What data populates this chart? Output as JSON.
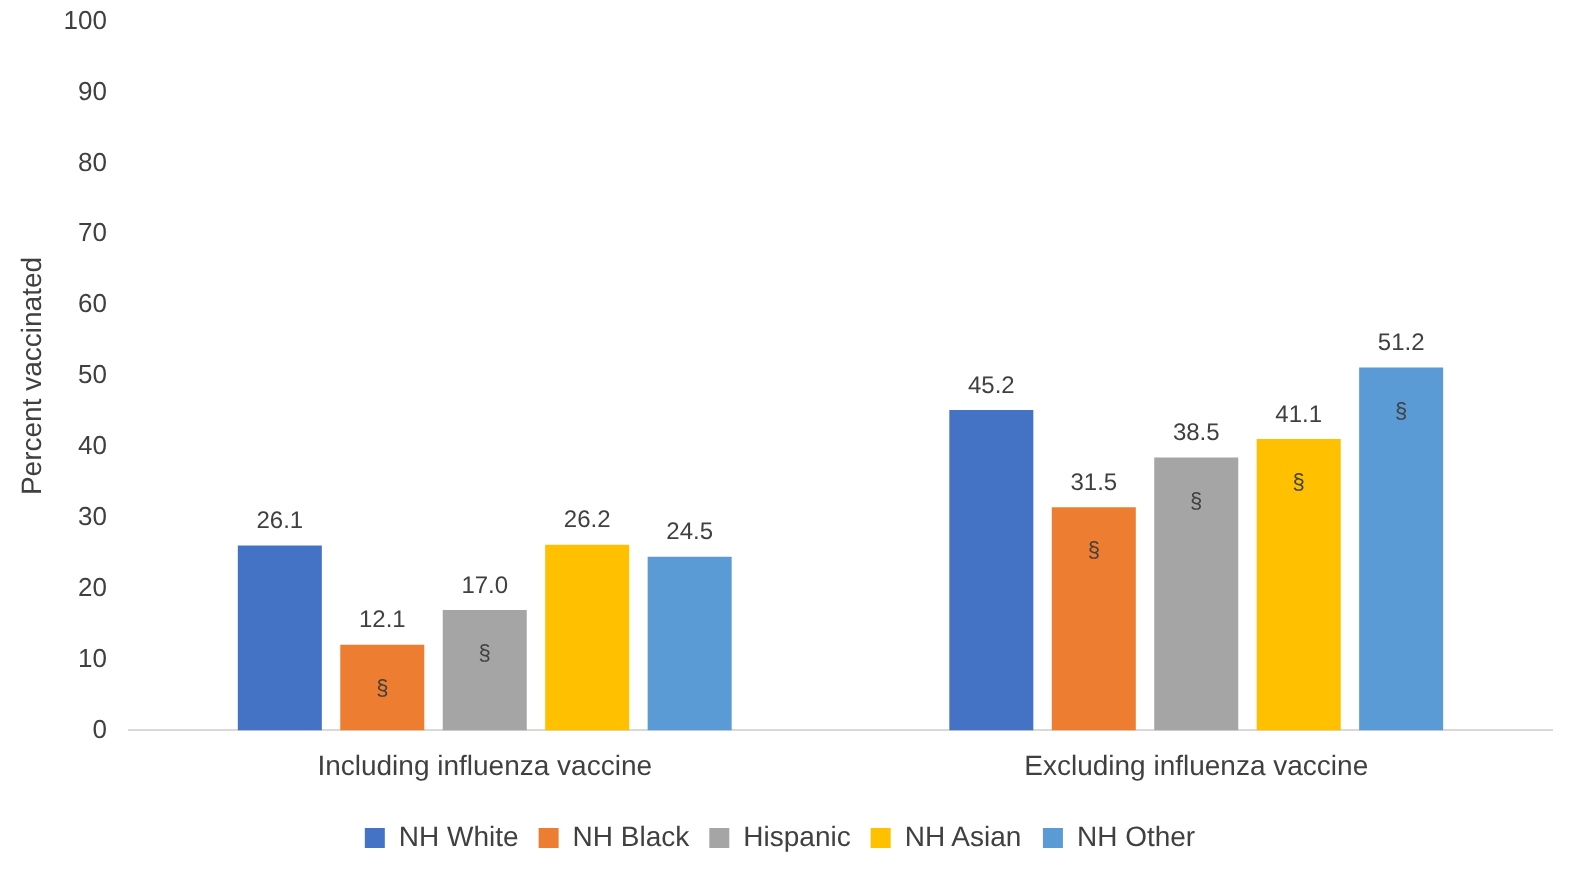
{
  "chart_data": {
    "type": "bar",
    "ylabel": "Percent vaccinated",
    "categories": [
      "Including influenza vaccine",
      "Excluding influenza vaccine"
    ],
    "series": [
      {
        "name": "NH White",
        "color": "#4472c4",
        "values": [
          26.1,
          45.2
        ],
        "value_labels": [
          "26.1",
          "45.2"
        ]
      },
      {
        "name": "NH Black",
        "color": "#ed7d31",
        "values": [
          12.1,
          31.5
        ],
        "value_labels": [
          "12.1",
          "31.5"
        ]
      },
      {
        "name": "Hispanic",
        "color": "#a5a5a5",
        "values": [
          17.0,
          38.5
        ],
        "value_labels": [
          "17.0",
          "38.5"
        ]
      },
      {
        "name": "NH Asian",
        "color": "#ffc000",
        "values": [
          26.2,
          41.1
        ],
        "value_labels": [
          "26.2",
          "41.1"
        ]
      },
      {
        "name": "NH Other",
        "color": "#5b9bd5",
        "values": [
          24.5,
          51.2
        ],
        "value_labels": [
          "24.5",
          "51.2"
        ]
      }
    ],
    "annotations": [
      "§",
      "§",
      "§",
      "§",
      "§",
      "§"
    ],
    "ylim": [
      0,
      100
    ],
    "yticks": [
      0,
      10,
      20,
      30,
      40,
      50,
      60,
      70,
      80,
      90,
      100
    ],
    "grid": false,
    "legend": "bottom"
  }
}
